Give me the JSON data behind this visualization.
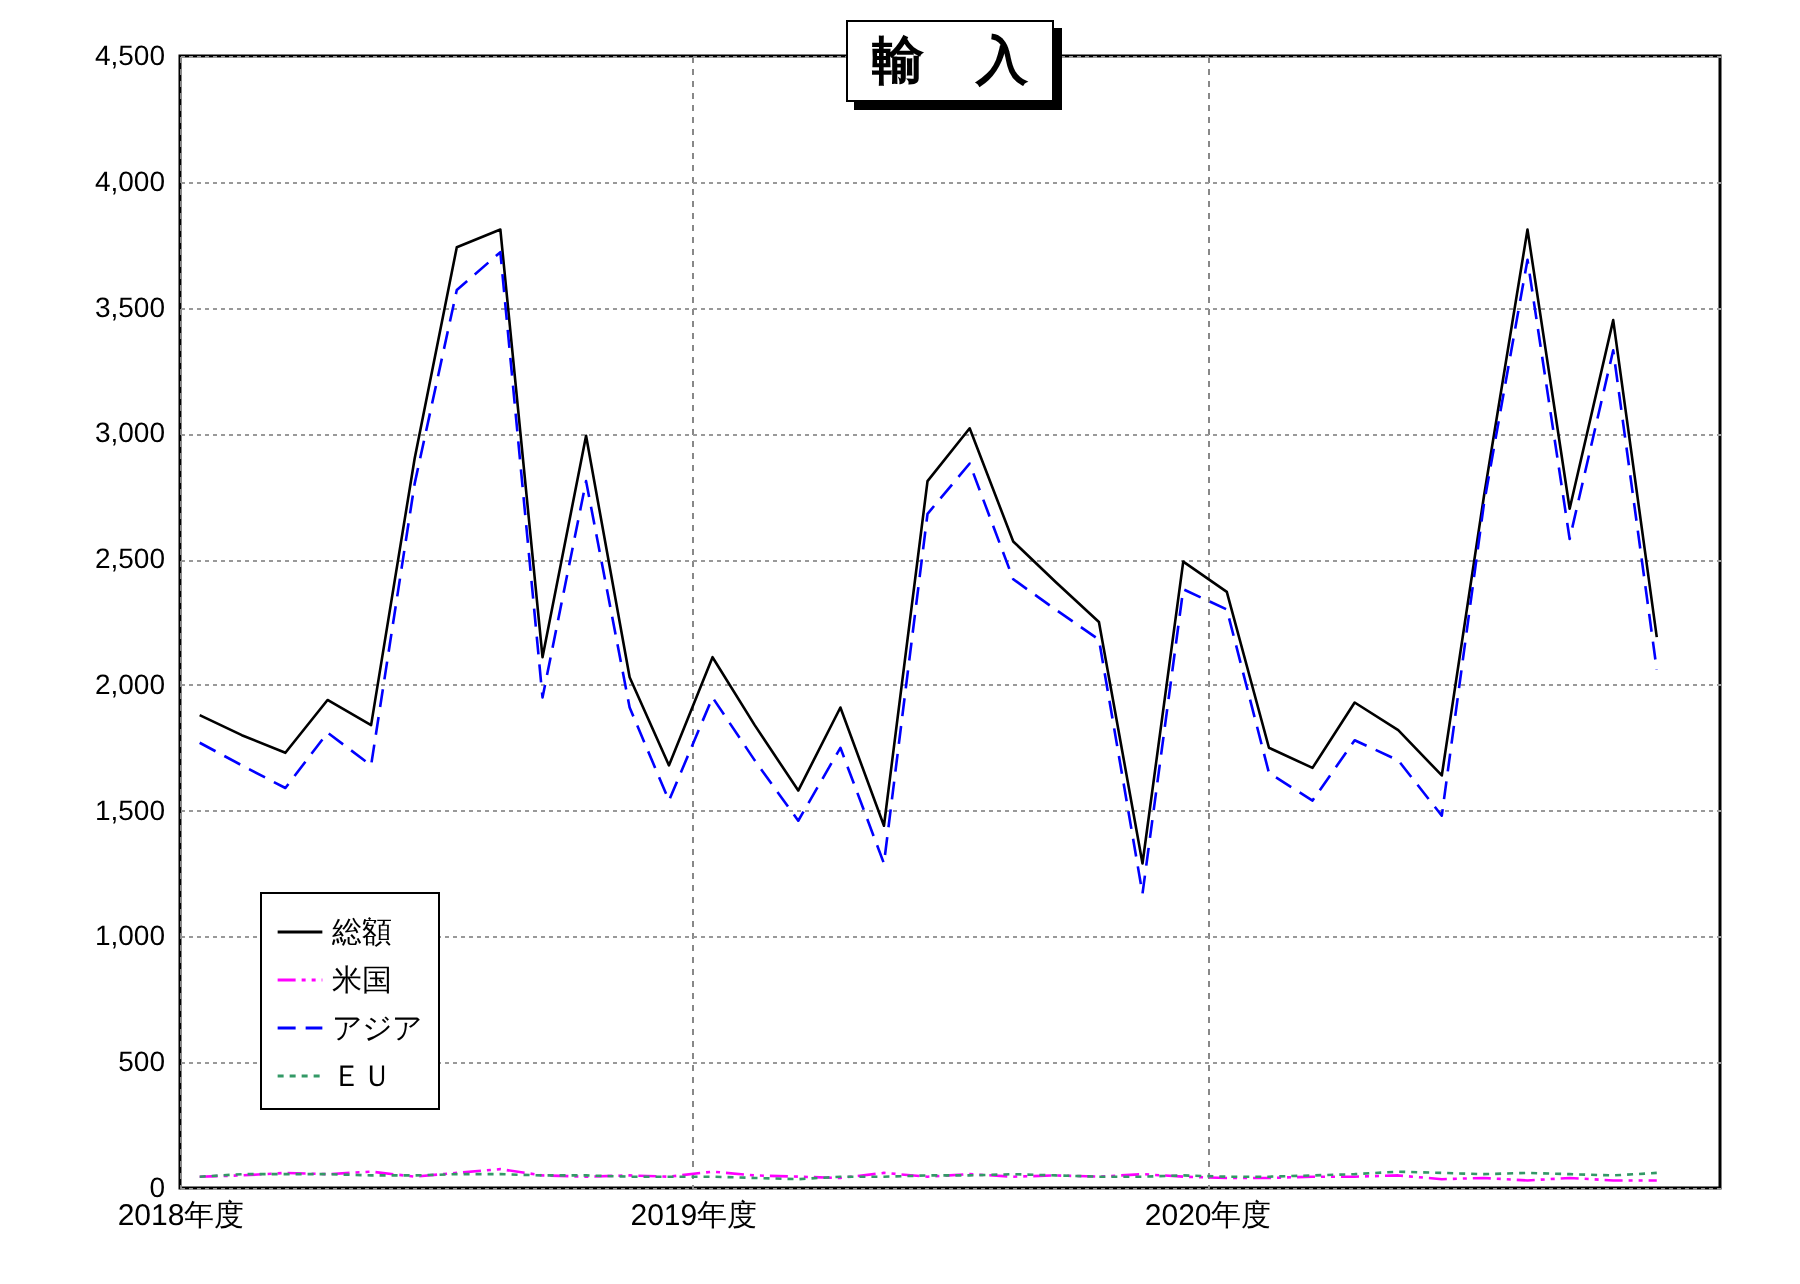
{
  "chart_data": {
    "type": "line",
    "title": "輸　入",
    "x": [
      "2018-04-15",
      "2018-05-15",
      "2018-06-15",
      "2018-07-15",
      "2018-08-15",
      "2018-09-15",
      "2018-10-15",
      "2018-11-15",
      "2018-12-15",
      "2019-01-15",
      "2019-02-15",
      "2019-03-15",
      "2019-04-15",
      "2019-05-15",
      "2019-06-15",
      "2019-07-15",
      "2019-08-15",
      "2019-09-15",
      "2019-10-15",
      "2019-11-15",
      "2019-12-15",
      "2020-01-15",
      "2020-02-15",
      "2020-03-15",
      "2020-04-15",
      "2020-05-15",
      "2020-06-15",
      "2020-07-15",
      "2020-08-15",
      "2020-09-15",
      "2020-10-15",
      "2020-11-15",
      "2020-12-15",
      "2021-01-15",
      "2021-02-15"
    ],
    "series": [
      {
        "name": "総額",
        "color": "#000000",
        "line_style": "solid",
        "values": [
          1880,
          1800,
          1730,
          1940,
          1840,
          2900,
          3740,
          3810,
          2110,
          2990,
          2030,
          1680,
          2110,
          1840,
          1580,
          1910,
          1440,
          2810,
          3020,
          2570,
          2410,
          2250,
          1290,
          2490,
          2370,
          1750,
          1670,
          1930,
          1820,
          1640,
          2750,
          3810,
          2700,
          3450,
          2190
        ]
      },
      {
        "name": "米国",
        "color": "#ff00ff",
        "line_style": "dashdot",
        "values": [
          45,
          50,
          60,
          55,
          65,
          45,
          60,
          75,
          50,
          45,
          50,
          45,
          65,
          50,
          45,
          40,
          60,
          45,
          55,
          45,
          50,
          45,
          55,
          45,
          40,
          40,
          45,
          45,
          50,
          35,
          40,
          30,
          40,
          30,
          30
        ]
      },
      {
        "name": "アジア",
        "color": "#0000ff",
        "line_style": "dashed",
        "values": [
          1770,
          1680,
          1590,
          1810,
          1680,
          2800,
          3570,
          3720,
          1950,
          2810,
          1910,
          1540,
          1950,
          1700,
          1460,
          1750,
          1290,
          2680,
          2880,
          2420,
          2300,
          2180,
          1170,
          2380,
          2300,
          1650,
          1540,
          1780,
          1700,
          1480,
          2720,
          3690,
          2580,
          3330,
          2060
        ]
      },
      {
        "name": "ＥＵ",
        "color": "#339966",
        "line_style": "dotted",
        "values": [
          45,
          55,
          55,
          55,
          50,
          50,
          55,
          55,
          50,
          50,
          45,
          45,
          45,
          40,
          35,
          45,
          45,
          50,
          50,
          55,
          50,
          45,
          45,
          50,
          45,
          45,
          50,
          55,
          65,
          60,
          55,
          60,
          55,
          50,
          60
        ]
      }
    ],
    "xlim": [
      "2018-04-01",
      "2021-04-01"
    ],
    "xticks": [
      {
        "value": "2018-04-01",
        "label": "2018年度"
      },
      {
        "value": "2019-04-01",
        "label": "2019年度"
      },
      {
        "value": "2020-04-01",
        "label": "2020年度"
      }
    ],
    "ylim": [
      0,
      4500
    ],
    "yticks": [
      {
        "value": 0,
        "label": "0"
      },
      {
        "value": 500,
        "label": "500"
      },
      {
        "value": 1000,
        "label": "1,000"
      },
      {
        "value": 1500,
        "label": "1,500"
      },
      {
        "value": 2000,
        "label": "2,000"
      },
      {
        "value": 2500,
        "label": "2,500"
      },
      {
        "value": 3000,
        "label": "3,000"
      },
      {
        "value": 3500,
        "label": "3,500"
      },
      {
        "value": 4000,
        "label": "4,000"
      },
      {
        "value": 4500,
        "label": "4,500"
      }
    ],
    "grid": true,
    "legend": "bottom left"
  }
}
